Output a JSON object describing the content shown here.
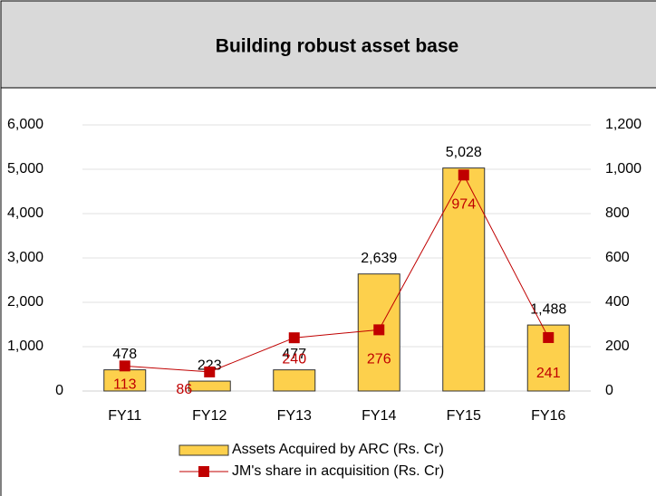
{
  "chart_data": {
    "type": "bar_line",
    "title": "Building robust asset base",
    "categories": [
      "FY11",
      "FY12",
      "FY13",
      "FY14",
      "FY15",
      "FY16"
    ],
    "series": [
      {
        "name": "Assets Acquired by ARC (Rs. Cr)",
        "type": "bar",
        "color": "#fdd04c",
        "values": [
          478,
          223,
          477,
          2639,
          5028,
          1488
        ],
        "value_labels": [
          "478",
          "223",
          "477",
          "2,639",
          "5,028",
          "1,488"
        ]
      },
      {
        "name": "JM's share in acquisition (Rs. Cr)",
        "type": "line",
        "axis": "y2",
        "color": "#c00000",
        "values": [
          113,
          86,
          240,
          276,
          974,
          241
        ]
      }
    ],
    "ylim": [
      0,
      6000
    ],
    "yticks": [
      0,
      {
        "value": 1000,
        "label": "1,000"
      },
      {
        "value": 2000,
        "label": "2,000"
      },
      {
        "value": 3000,
        "label": "3,000"
      },
      {
        "value": 4000,
        "label": "4,000"
      },
      {
        "value": 5000,
        "label": "5,000"
      },
      {
        "value": 6000,
        "label": "6,000"
      }
    ],
    "y2lim": [
      0,
      1200
    ],
    "y2ticks": [
      0,
      200,
      400,
      600,
      800,
      {
        "value": 1000,
        "label": "1,000"
      },
      {
        "value": 1200,
        "label": "1,200"
      }
    ],
    "grid": true,
    "legend": "bottom"
  }
}
